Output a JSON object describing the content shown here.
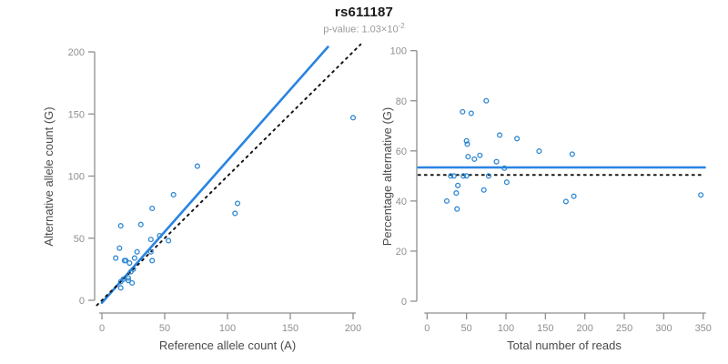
{
  "header": {
    "title": "rs611187",
    "subtitle_prefix": "p-value: 1.03×10",
    "subtitle_exponent": "-2"
  },
  "colors": {
    "regression_blue": "#2a84e2",
    "point_blue": "#2e87d2",
    "dotted_black": "#161616",
    "axis_gray": "#8f8f8f",
    "tick_label_gray": "#8f8f8f",
    "axis_label_gray": "#4a4a4a",
    "title_color": "#1a1a1a",
    "subtitle_color": "#9b9b9b"
  },
  "chart_data": [
    {
      "type": "scatter",
      "panel": "left",
      "xlabel": "Reference allele count (A)",
      "ylabel": "Alternative allele count (G)",
      "xlim": [
        0,
        200
      ],
      "ylim": [
        0,
        200
      ],
      "xticks": [
        0,
        50,
        100,
        150,
        200
      ],
      "yticks": [
        0,
        50,
        100,
        150,
        200
      ],
      "grid": false,
      "points": [
        [
          15,
          60
        ],
        [
          11,
          34
        ],
        [
          14,
          42
        ],
        [
          18,
          32
        ],
        [
          31,
          61
        ],
        [
          40,
          74
        ],
        [
          19,
          32
        ],
        [
          22,
          30
        ],
        [
          26,
          34
        ],
        [
          28,
          39
        ],
        [
          57,
          85
        ],
        [
          76,
          108
        ],
        [
          39,
          49
        ],
        [
          53,
          48
        ],
        [
          46,
          52
        ],
        [
          15,
          15
        ],
        [
          17,
          17
        ],
        [
          23,
          23
        ],
        [
          25,
          25
        ],
        [
          39,
          39
        ],
        [
          21,
          18
        ],
        [
          40,
          32
        ],
        [
          21,
          16
        ],
        [
          15,
          10
        ],
        [
          106,
          70
        ],
        [
          108,
          78
        ],
        [
          200,
          147
        ],
        [
          24,
          14
        ]
      ],
      "lines": [
        {
          "name": "regression-line",
          "style": "solid",
          "color": "#2a84e2",
          "width": 2.6,
          "from": [
            0,
            -2
          ],
          "to": [
            180,
            204
          ]
        },
        {
          "name": "identity-line",
          "style": "dotted",
          "color": "#161616",
          "width": 2.0,
          "from": [
            -4,
            -4
          ],
          "to": [
            206,
            206
          ]
        }
      ]
    },
    {
      "type": "scatter",
      "panel": "right",
      "xlabel": "Total number of reads",
      "ylabel": "Percentage alternative (G)",
      "xlim": [
        0,
        350
      ],
      "ylim": [
        0,
        100
      ],
      "xticks": [
        0,
        50,
        100,
        150,
        200,
        250,
        300,
        350
      ],
      "yticks": [
        0,
        20,
        40,
        60,
        80,
        100
      ],
      "grid": false,
      "points": [
        [
          75,
          80
        ],
        [
          45,
          75.6
        ],
        [
          56,
          75
        ],
        [
          50,
          64
        ],
        [
          92,
          66.3
        ],
        [
          114,
          64.9
        ],
        [
          51,
          62.7
        ],
        [
          52,
          57.7
        ],
        [
          60,
          56.7
        ],
        [
          67,
          58.2
        ],
        [
          142,
          59.9
        ],
        [
          184,
          58.7
        ],
        [
          88,
          55.7
        ],
        [
          101,
          47.5
        ],
        [
          98,
          53.1
        ],
        [
          30,
          50
        ],
        [
          34,
          50
        ],
        [
          46,
          50
        ],
        [
          50,
          50
        ],
        [
          78,
          50
        ],
        [
          39,
          46.2
        ],
        [
          72,
          44.4
        ],
        [
          37,
          43.2
        ],
        [
          25,
          40
        ],
        [
          176,
          39.8
        ],
        [
          186,
          41.9
        ],
        [
          347,
          42.4
        ],
        [
          38,
          36.8
        ]
      ],
      "lines": [
        {
          "name": "mean-percentage-line",
          "style": "solid",
          "color": "#2a84e2",
          "width": 2.6,
          "from": [
            -11,
            53.4
          ],
          "to": [
            352,
            53.4
          ]
        },
        {
          "name": "expected-50-line",
          "style": "dotted",
          "color": "#161616",
          "width": 2.0,
          "from": [
            -11,
            50.4
          ],
          "to": [
            348,
            50.4
          ]
        }
      ]
    }
  ]
}
